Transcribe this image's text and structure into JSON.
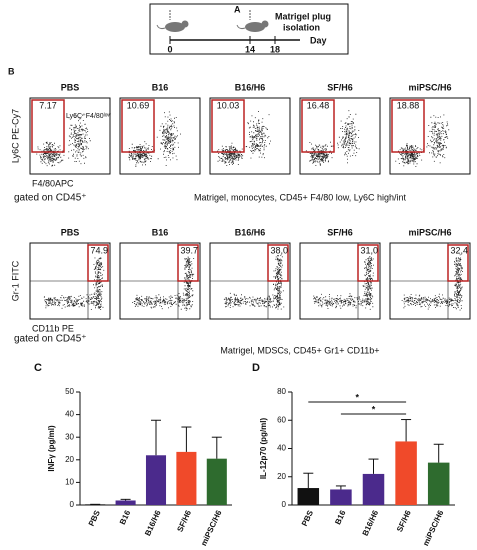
{
  "panel_labels": [
    "A",
    "B",
    "C",
    "D"
  ],
  "timeline": {
    "days": [
      "0",
      "14",
      "18"
    ],
    "unit": "Day",
    "event": [
      "Matrigel plug",
      "isolation"
    ]
  },
  "flow": [
    {
      "samples": [
        "PBS",
        "B16",
        "B16/H6",
        "SF/H6",
        "miPSC/H6"
      ],
      "gates": [
        "7.17",
        "10.69",
        "10.03",
        "16.48",
        "18.88"
      ],
      "gate_label": "Ly6C⁺F4/80ˡᵒʷ",
      "y_axis": "Ly6C PE-Cy7",
      "x_axis": "F4/80APC",
      "gating": "gated on CD45⁺",
      "caption": "Matrigel, monocytes, CD45+ F4/80 low, Ly6C high/int"
    },
    {
      "samples": [
        "PBS",
        "B16",
        "B16/H6",
        "SF/H6",
        "miPSC/H6"
      ],
      "gates": [
        "74.9",
        "39.7",
        "38,0",
        "31,0",
        "32,4"
      ],
      "y_axis": "Gr-1 FITC",
      "x_axis": "CD11b PE",
      "gating": "gated on CD45⁺",
      "caption": "Matrigel, MDSCs, CD45+ Gr1+ CD11b+"
    }
  ],
  "chart_data": [
    {
      "type": "bar",
      "panel": "C",
      "ylabel": "INFγ (pg/ml)",
      "categories": [
        "PBS",
        "B16",
        "B16/H6",
        "SF/H6",
        "miPSC/H6"
      ],
      "values": [
        0.3,
        2,
        22,
        23.5,
        20.5
      ],
      "errors": [
        0,
        0.5,
        15.5,
        11,
        9.5
      ],
      "colors": [
        "#111111",
        "#4b2a8c",
        "#4b2a8c",
        "#f04a2a",
        "#2e6b2e"
      ],
      "ylim": [
        0,
        50
      ],
      "yticks": [
        0,
        10,
        20,
        30,
        40,
        50
      ]
    },
    {
      "type": "bar",
      "panel": "D",
      "ylabel": "IL-12p70 (pg/ml)",
      "categories": [
        "PBS",
        "B16",
        "B16/H6",
        "SF/H6",
        "miPSC/H6"
      ],
      "values": [
        12,
        11,
        22,
        45,
        30
      ],
      "errors": [
        10.5,
        2.5,
        10.5,
        15.5,
        13
      ],
      "colors": [
        "#111111",
        "#4b2a8c",
        "#4b2a8c",
        "#f04a2a",
        "#2e6b2e"
      ],
      "ylim": [
        0,
        80
      ],
      "yticks": [
        0,
        20,
        40,
        60,
        80
      ],
      "comparisons": [
        {
          "from": 0,
          "to": 3,
          "label": "*"
        },
        {
          "from": 1,
          "to": 3,
          "label": "*"
        }
      ]
    }
  ]
}
